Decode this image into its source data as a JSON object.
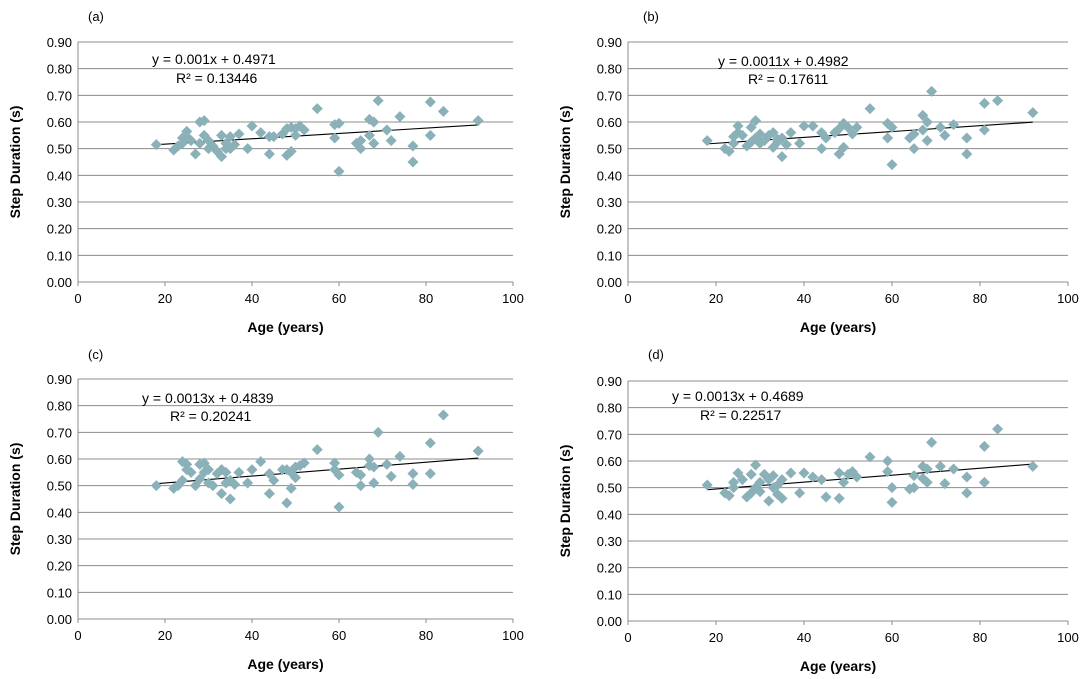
{
  "chart_data": [
    {
      "type": "scatter",
      "panel_label": "(a)",
      "xlabel": "Age (years)",
      "ylabel": "Step Duration (s)",
      "xlim": [
        0,
        100
      ],
      "ylim": [
        0,
        0.9
      ],
      "x_ticks": [
        "0",
        "20",
        "40",
        "60",
        "80",
        "100"
      ],
      "y_ticks": [
        "0.00",
        "0.10",
        "0.20",
        "0.30",
        "0.40",
        "0.50",
        "0.60",
        "0.70",
        "0.80",
        "0.90"
      ],
      "grid": "horizontal",
      "marker_color": "#8ab0b8",
      "equation": "y = 0.001x + 0.4971",
      "r_squared": "R² = 0.13446",
      "trendline": {
        "slope": 0.001,
        "intercept": 0.4971,
        "x_range": [
          18,
          92
        ]
      },
      "points": [
        [
          18,
          0.515
        ],
        [
          22,
          0.495
        ],
        [
          23,
          0.51
        ],
        [
          24,
          0.52
        ],
        [
          24,
          0.54
        ],
        [
          25,
          0.545
        ],
        [
          25,
          0.565
        ],
        [
          26,
          0.53
        ],
        [
          27,
          0.48
        ],
        [
          28,
          0.6
        ],
        [
          28,
          0.52
        ],
        [
          29,
          0.55
        ],
        [
          29,
          0.605
        ],
        [
          30,
          0.5
        ],
        [
          30,
          0.53
        ],
        [
          31,
          0.51
        ],
        [
          32,
          0.49
        ],
        [
          33,
          0.55
        ],
        [
          33,
          0.47
        ],
        [
          34,
          0.52
        ],
        [
          34,
          0.5
        ],
        [
          35,
          0.545
        ],
        [
          35,
          0.5
        ],
        [
          36,
          0.515
        ],
        [
          37,
          0.555
        ],
        [
          39,
          0.5
        ],
        [
          40,
          0.585
        ],
        [
          42,
          0.56
        ],
        [
          44,
          0.545
        ],
        [
          44,
          0.48
        ],
        [
          45,
          0.545
        ],
        [
          47,
          0.555
        ],
        [
          48,
          0.575
        ],
        [
          48,
          0.475
        ],
        [
          49,
          0.58
        ],
        [
          49,
          0.49
        ],
        [
          50,
          0.575
        ],
        [
          50,
          0.55
        ],
        [
          51,
          0.585
        ],
        [
          52,
          0.57
        ],
        [
          55,
          0.65
        ],
        [
          59,
          0.54
        ],
        [
          59,
          0.59
        ],
        [
          60,
          0.415
        ],
        [
          60,
          0.595
        ],
        [
          64,
          0.52
        ],
        [
          65,
          0.5
        ],
        [
          65,
          0.53
        ],
        [
          67,
          0.61
        ],
        [
          67,
          0.55
        ],
        [
          68,
          0.6
        ],
        [
          68,
          0.52
        ],
        [
          69,
          0.68
        ],
        [
          71,
          0.57
        ],
        [
          72,
          0.53
        ],
        [
          74,
          0.62
        ],
        [
          77,
          0.45
        ],
        [
          77,
          0.51
        ],
        [
          81,
          0.675
        ],
        [
          81,
          0.55
        ],
        [
          84,
          0.64
        ],
        [
          92,
          0.605
        ]
      ]
    },
    {
      "type": "scatter",
      "panel_label": "(b)",
      "xlabel": "Age (years)",
      "ylabel": "Step Duration (s)",
      "xlim": [
        0,
        100
      ],
      "ylim": [
        0,
        0.9
      ],
      "x_ticks": [
        "0",
        "20",
        "40",
        "60",
        "80",
        "100"
      ],
      "y_ticks": [
        "0.00",
        "0.10",
        "0.20",
        "0.30",
        "0.40",
        "0.50",
        "0.60",
        "0.70",
        "0.80",
        "0.90"
      ],
      "grid": "horizontal",
      "marker_color": "#8ab0b8",
      "equation": "y = 0.0011x + 0.4982",
      "r_squared": "R² = 0.17611",
      "trendline": {
        "slope": 0.0011,
        "intercept": 0.4982,
        "x_range": [
          18,
          92
        ]
      },
      "points": [
        [
          18,
          0.53
        ],
        [
          22,
          0.5
        ],
        [
          23,
          0.49
        ],
        [
          24,
          0.52
        ],
        [
          24,
          0.545
        ],
        [
          25,
          0.56
        ],
        [
          25,
          0.585
        ],
        [
          26,
          0.55
        ],
        [
          27,
          0.51
        ],
        [
          28,
          0.58
        ],
        [
          28,
          0.525
        ],
        [
          29,
          0.54
        ],
        [
          29,
          0.605
        ],
        [
          30,
          0.52
        ],
        [
          30,
          0.555
        ],
        [
          31,
          0.53
        ],
        [
          32,
          0.55
        ],
        [
          33,
          0.56
        ],
        [
          33,
          0.505
        ],
        [
          34,
          0.535
        ],
        [
          34,
          0.525
        ],
        [
          35,
          0.54
        ],
        [
          35,
          0.47
        ],
        [
          36,
          0.515
        ],
        [
          37,
          0.56
        ],
        [
          39,
          0.52
        ],
        [
          40,
          0.585
        ],
        [
          42,
          0.585
        ],
        [
          44,
          0.56
        ],
        [
          44,
          0.5
        ],
        [
          45,
          0.54
        ],
        [
          47,
          0.56
        ],
        [
          48,
          0.575
        ],
        [
          48,
          0.48
        ],
        [
          49,
          0.595
        ],
        [
          49,
          0.505
        ],
        [
          50,
          0.58
        ],
        [
          51,
          0.555
        ],
        [
          52,
          0.58
        ],
        [
          55,
          0.65
        ],
        [
          59,
          0.54
        ],
        [
          59,
          0.595
        ],
        [
          60,
          0.44
        ],
        [
          60,
          0.58
        ],
        [
          64,
          0.54
        ],
        [
          65,
          0.5
        ],
        [
          65,
          0.555
        ],
        [
          67,
          0.625
        ],
        [
          67,
          0.57
        ],
        [
          68,
          0.6
        ],
        [
          68,
          0.53
        ],
        [
          69,
          0.715
        ],
        [
          71,
          0.58
        ],
        [
          72,
          0.55
        ],
        [
          74,
          0.59
        ],
        [
          77,
          0.48
        ],
        [
          77,
          0.54
        ],
        [
          81,
          0.67
        ],
        [
          81,
          0.57
        ],
        [
          84,
          0.68
        ],
        [
          92,
          0.635
        ]
      ]
    },
    {
      "type": "scatter",
      "panel_label": "(c)",
      "xlabel": "Age (years)",
      "ylabel": "Step Duration (s)",
      "xlim": [
        0,
        100
      ],
      "ylim": [
        0,
        0.9
      ],
      "x_ticks": [
        "0",
        "20",
        "40",
        "60",
        "80",
        "100"
      ],
      "y_ticks": [
        "0.00",
        "0.10",
        "0.20",
        "0.30",
        "0.40",
        "0.50",
        "0.60",
        "0.70",
        "0.80",
        "0.90"
      ],
      "grid": "horizontal",
      "marker_color": "#8ab0b8",
      "equation": "y = 0.0013x + 0.4839",
      "r_squared": "R² = 0.20241",
      "trendline": {
        "slope": 0.0013,
        "intercept": 0.4839,
        "x_range": [
          18,
          92
        ]
      },
      "points": [
        [
          18,
          0.5
        ],
        [
          22,
          0.49
        ],
        [
          23,
          0.5
        ],
        [
          24,
          0.52
        ],
        [
          24,
          0.59
        ],
        [
          25,
          0.56
        ],
        [
          25,
          0.58
        ],
        [
          26,
          0.55
        ],
        [
          27,
          0.5
        ],
        [
          28,
          0.58
        ],
        [
          28,
          0.525
        ],
        [
          29,
          0.55
        ],
        [
          29,
          0.585
        ],
        [
          30,
          0.51
        ],
        [
          30,
          0.56
        ],
        [
          31,
          0.5
        ],
        [
          32,
          0.545
        ],
        [
          33,
          0.56
        ],
        [
          33,
          0.47
        ],
        [
          34,
          0.55
        ],
        [
          34,
          0.51
        ],
        [
          35,
          0.52
        ],
        [
          35,
          0.45
        ],
        [
          36,
          0.505
        ],
        [
          37,
          0.55
        ],
        [
          39,
          0.51
        ],
        [
          40,
          0.56
        ],
        [
          42,
          0.59
        ],
        [
          44,
          0.545
        ],
        [
          44,
          0.47
        ],
        [
          45,
          0.52
        ],
        [
          47,
          0.56
        ],
        [
          48,
          0.56
        ],
        [
          48,
          0.435
        ],
        [
          49,
          0.55
        ],
        [
          49,
          0.49
        ],
        [
          50,
          0.57
        ],
        [
          50,
          0.53
        ],
        [
          51,
          0.575
        ],
        [
          52,
          0.585
        ],
        [
          55,
          0.635
        ],
        [
          59,
          0.56
        ],
        [
          59,
          0.585
        ],
        [
          60,
          0.42
        ],
        [
          60,
          0.54
        ],
        [
          64,
          0.55
        ],
        [
          65,
          0.5
        ],
        [
          65,
          0.54
        ],
        [
          67,
          0.6
        ],
        [
          67,
          0.575
        ],
        [
          68,
          0.57
        ],
        [
          68,
          0.51
        ],
        [
          69,
          0.7
        ],
        [
          71,
          0.58
        ],
        [
          72,
          0.535
        ],
        [
          74,
          0.61
        ],
        [
          77,
          0.505
        ],
        [
          77,
          0.545
        ],
        [
          81,
          0.66
        ],
        [
          81,
          0.545
        ],
        [
          84,
          0.765
        ],
        [
          92,
          0.63
        ]
      ]
    },
    {
      "type": "scatter",
      "panel_label": "(d)",
      "xlabel": "Age (years)",
      "ylabel": "Step Duration (s)",
      "xlim": [
        0,
        100
      ],
      "ylim": [
        0,
        0.9
      ],
      "x_ticks": [
        "0",
        "20",
        "40",
        "60",
        "80",
        "100"
      ],
      "y_ticks": [
        "0.00",
        "0.10",
        "0.20",
        "0.30",
        "0.40",
        "0.50",
        "0.60",
        "0.70",
        "0.80",
        "0.90"
      ],
      "grid": "horizontal",
      "marker_color": "#8ab0b8",
      "equation": "y = 0.0013x + 0.4689",
      "r_squared": "R² = 0.22517",
      "trendline": {
        "slope": 0.0013,
        "intercept": 0.4689,
        "x_range": [
          18,
          92
        ]
      },
      "points": [
        [
          18,
          0.51
        ],
        [
          22,
          0.48
        ],
        [
          23,
          0.47
        ],
        [
          24,
          0.5
        ],
        [
          24,
          0.52
        ],
        [
          25,
          0.555
        ],
        [
          26,
          0.53
        ],
        [
          27,
          0.465
        ],
        [
          28,
          0.48
        ],
        [
          28,
          0.55
        ],
        [
          29,
          0.585
        ],
        [
          29,
          0.5
        ],
        [
          30,
          0.52
        ],
        [
          30,
          0.485
        ],
        [
          31,
          0.55
        ],
        [
          32,
          0.53
        ],
        [
          32,
          0.45
        ],
        [
          33,
          0.5
        ],
        [
          33,
          0.545
        ],
        [
          34,
          0.475
        ],
        [
          34,
          0.51
        ],
        [
          35,
          0.46
        ],
        [
          35,
          0.53
        ],
        [
          37,
          0.555
        ],
        [
          39,
          0.48
        ],
        [
          40,
          0.555
        ],
        [
          42,
          0.54
        ],
        [
          44,
          0.53
        ],
        [
          45,
          0.465
        ],
        [
          48,
          0.46
        ],
        [
          48,
          0.555
        ],
        [
          49,
          0.52
        ],
        [
          50,
          0.55
        ],
        [
          51,
          0.56
        ],
        [
          52,
          0.54
        ],
        [
          55,
          0.615
        ],
        [
          59,
          0.56
        ],
        [
          59,
          0.6
        ],
        [
          60,
          0.445
        ],
        [
          60,
          0.5
        ],
        [
          64,
          0.495
        ],
        [
          65,
          0.5
        ],
        [
          65,
          0.545
        ],
        [
          67,
          0.58
        ],
        [
          67,
          0.535
        ],
        [
          68,
          0.57
        ],
        [
          68,
          0.52
        ],
        [
          69,
          0.67
        ],
        [
          71,
          0.58
        ],
        [
          72,
          0.515
        ],
        [
          74,
          0.57
        ],
        [
          77,
          0.48
        ],
        [
          77,
          0.54
        ],
        [
          81,
          0.655
        ],
        [
          81,
          0.52
        ],
        [
          84,
          0.72
        ],
        [
          92,
          0.58
        ]
      ]
    }
  ]
}
